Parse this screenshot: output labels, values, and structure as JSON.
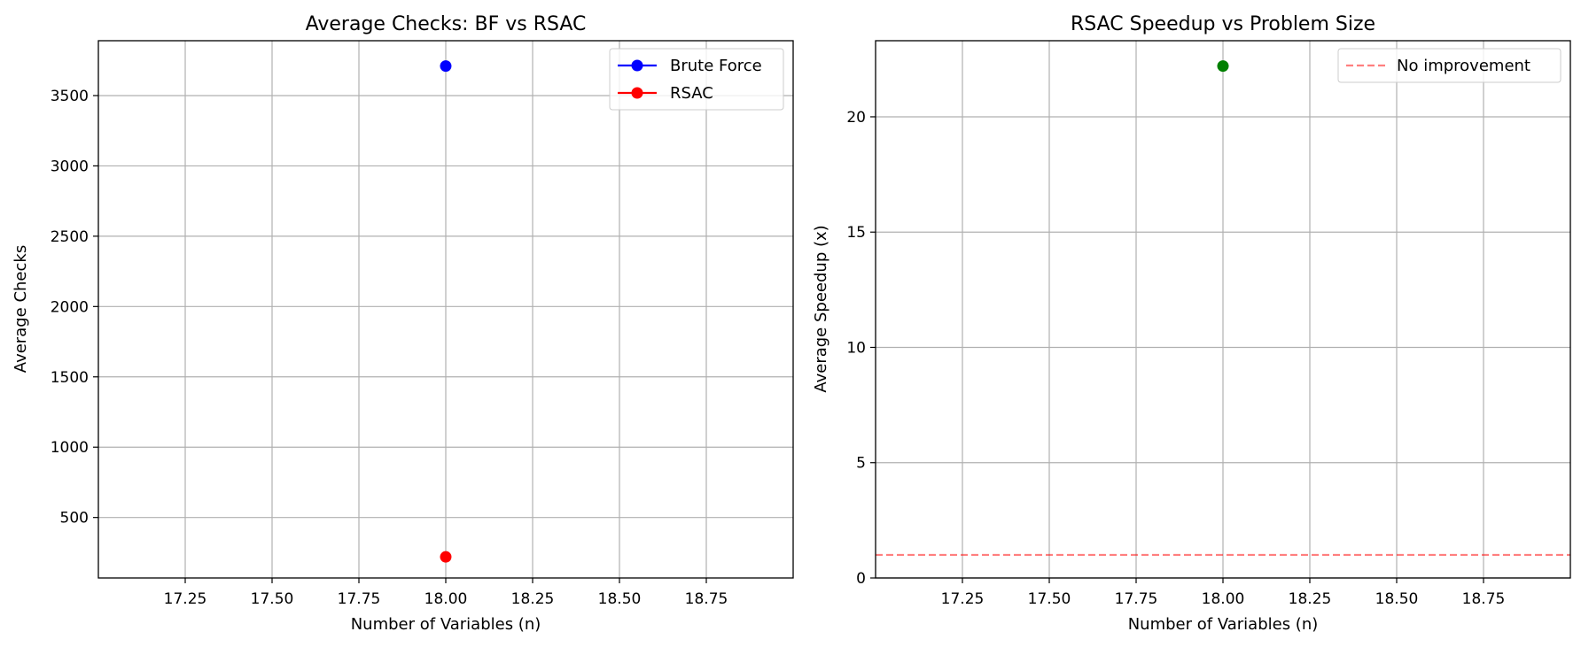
{
  "chart_data": [
    {
      "type": "scatter",
      "title": "Average Checks: BF vs RSAC",
      "xlabel": "Number of Variables (n)",
      "ylabel": "Average Checks",
      "xlim": [
        17.0,
        19.0
      ],
      "ylim": [
        70,
        3890
      ],
      "xticks": [
        "17.25",
        "17.50",
        "17.75",
        "18.00",
        "18.25",
        "18.50",
        "18.75"
      ],
      "yticks": [
        "500",
        "1000",
        "1500",
        "2000",
        "2500",
        "3000",
        "3500"
      ],
      "grid": true,
      "legend_position": "top-right",
      "series": [
        {
          "name": "Brute Force",
          "color": "#0000ff",
          "x": [
            18.0
          ],
          "y": [
            3710
          ]
        },
        {
          "name": "RSAC",
          "color": "#ff0000",
          "x": [
            18.0
          ],
          "y": [
            220
          ]
        }
      ]
    },
    {
      "type": "scatter",
      "title": "RSAC Speedup vs Problem Size",
      "xlabel": "Number of Variables (n)",
      "ylabel": "Average Speedup (x)",
      "xlim": [
        17.0,
        19.0
      ],
      "ylim": [
        0,
        23.3
      ],
      "xticks": [
        "17.25",
        "17.50",
        "17.75",
        "18.00",
        "18.25",
        "18.50",
        "18.75"
      ],
      "yticks": [
        "0",
        "5",
        "10",
        "15",
        "20"
      ],
      "grid": true,
      "legend_position": "top-right",
      "series": [
        {
          "color": "#008000",
          "x": [
            18.0
          ],
          "y": [
            22.2
          ]
        }
      ],
      "reference_line": {
        "name": "No improvement",
        "y": 1,
        "color": "#ff0000",
        "style": "dashed"
      }
    }
  ]
}
